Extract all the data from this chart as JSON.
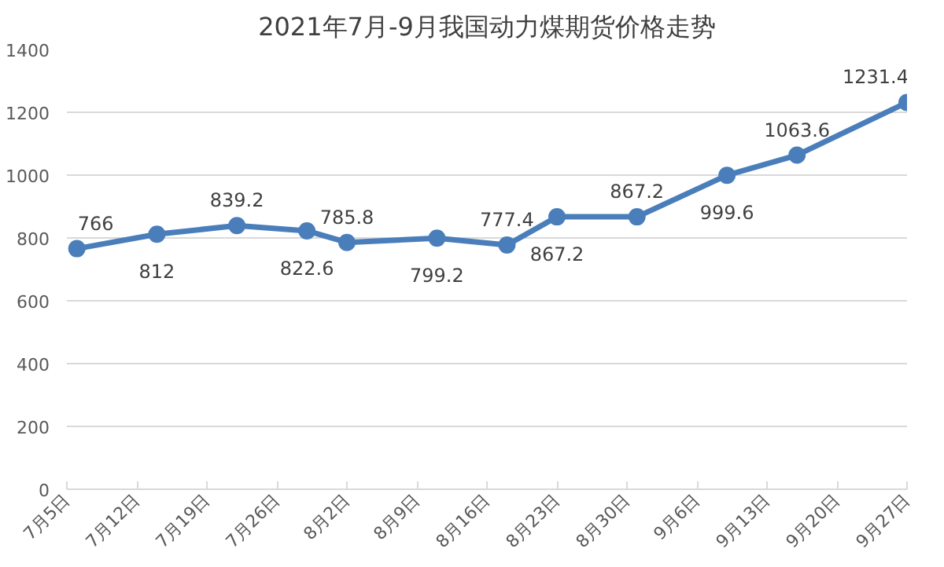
{
  "chart_data": {
    "type": "line",
    "title": "2021年7月-9月我国动力煤期货价格走势",
    "x": [
      "2021-07-06",
      "2021-07-14",
      "2021-07-22",
      "2021-07-29",
      "2021-08-02",
      "2021-08-11",
      "2021-08-18",
      "2021-08-23",
      "2021-08-31",
      "2021-09-09",
      "2021-09-16",
      "2021-09-27"
    ],
    "series": [
      {
        "color": "#4a7ebb",
        "values": [
          766,
          812,
          839.2,
          822.6,
          785.8,
          799.2,
          777.4,
          867.2,
          867.2,
          999.6,
          1063.6,
          1231.4
        ]
      }
    ],
    "xlim": [
      "2021-07-05",
      "2021-09-27"
    ],
    "xticks": [
      {
        "value": "2021-07-05",
        "label": "7月5日"
      },
      {
        "value": "2021-07-12",
        "label": "7月12日"
      },
      {
        "value": "2021-07-19",
        "label": "7月19日"
      },
      {
        "value": "2021-07-26",
        "label": "7月26日"
      },
      {
        "value": "2021-08-02",
        "label": "8月2日"
      },
      {
        "value": "2021-08-09",
        "label": "8月9日"
      },
      {
        "value": "2021-08-16",
        "label": "8月16日"
      },
      {
        "value": "2021-08-23",
        "label": "8月23日"
      },
      {
        "value": "2021-08-30",
        "label": "8月30日"
      },
      {
        "value": "2021-09-06",
        "label": "9月6日"
      },
      {
        "value": "2021-09-13",
        "label": "9月13日"
      },
      {
        "value": "2021-09-20",
        "label": "9月20日"
      },
      {
        "value": "2021-09-27",
        "label": "9月27日"
      }
    ],
    "ylim": [
      0,
      1400
    ],
    "yticks": [
      0,
      200,
      400,
      600,
      800,
      1000,
      1200,
      1400
    ],
    "grid": "y",
    "marker": "circle",
    "line_style": "solid",
    "data_labels": true
  }
}
